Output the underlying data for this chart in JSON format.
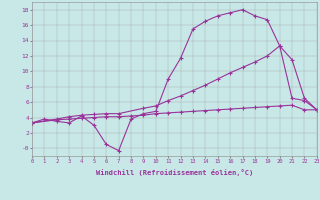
{
  "background_color": "#c8e8e8",
  "line_color": "#993399",
  "xlabel": "Windchill (Refroidissement éolien,°C)",
  "xlim": [
    0,
    23
  ],
  "ylim": [
    -1,
    19
  ],
  "xticks": [
    0,
    1,
    2,
    3,
    4,
    5,
    6,
    7,
    8,
    9,
    10,
    11,
    12,
    13,
    14,
    15,
    16,
    17,
    18,
    19,
    20,
    21,
    22,
    23
  ],
  "yticks": [
    0,
    2,
    4,
    6,
    8,
    10,
    12,
    14,
    16,
    18
  ],
  "line1_x": [
    0,
    1,
    2,
    3,
    4,
    5,
    6,
    7,
    8,
    9,
    10,
    11,
    12,
    13,
    14,
    15,
    16,
    17,
    18,
    19,
    20,
    21,
    22,
    23
  ],
  "line1_y": [
    3.3,
    3.8,
    3.5,
    3.3,
    4.2,
    3.0,
    0.5,
    -0.3,
    3.8,
    4.5,
    4.8,
    9.0,
    11.7,
    15.5,
    16.5,
    17.2,
    17.6,
    18.0,
    17.2,
    16.7,
    13.3,
    6.5,
    6.2,
    5.0
  ],
  "line2_x": [
    0,
    2,
    3,
    4,
    5,
    6,
    7,
    9,
    10,
    11,
    12,
    13,
    14,
    15,
    16,
    17,
    18,
    19,
    20,
    21,
    22,
    23
  ],
  "line2_y": [
    3.3,
    3.8,
    4.1,
    4.3,
    4.4,
    4.5,
    4.5,
    5.2,
    5.5,
    6.2,
    6.8,
    7.5,
    8.2,
    9.0,
    9.8,
    10.5,
    11.2,
    12.0,
    13.3,
    11.5,
    6.5,
    5.0
  ],
  "line3_x": [
    0,
    2,
    3,
    4,
    5,
    6,
    7,
    8,
    9,
    10,
    11,
    12,
    13,
    14,
    15,
    16,
    17,
    18,
    19,
    20,
    21,
    22,
    23
  ],
  "line3_y": [
    3.3,
    3.7,
    3.8,
    3.9,
    4.0,
    4.1,
    4.1,
    4.2,
    4.3,
    4.5,
    4.6,
    4.7,
    4.8,
    4.9,
    5.0,
    5.1,
    5.2,
    5.3,
    5.4,
    5.5,
    5.6,
    5.0,
    5.0
  ]
}
